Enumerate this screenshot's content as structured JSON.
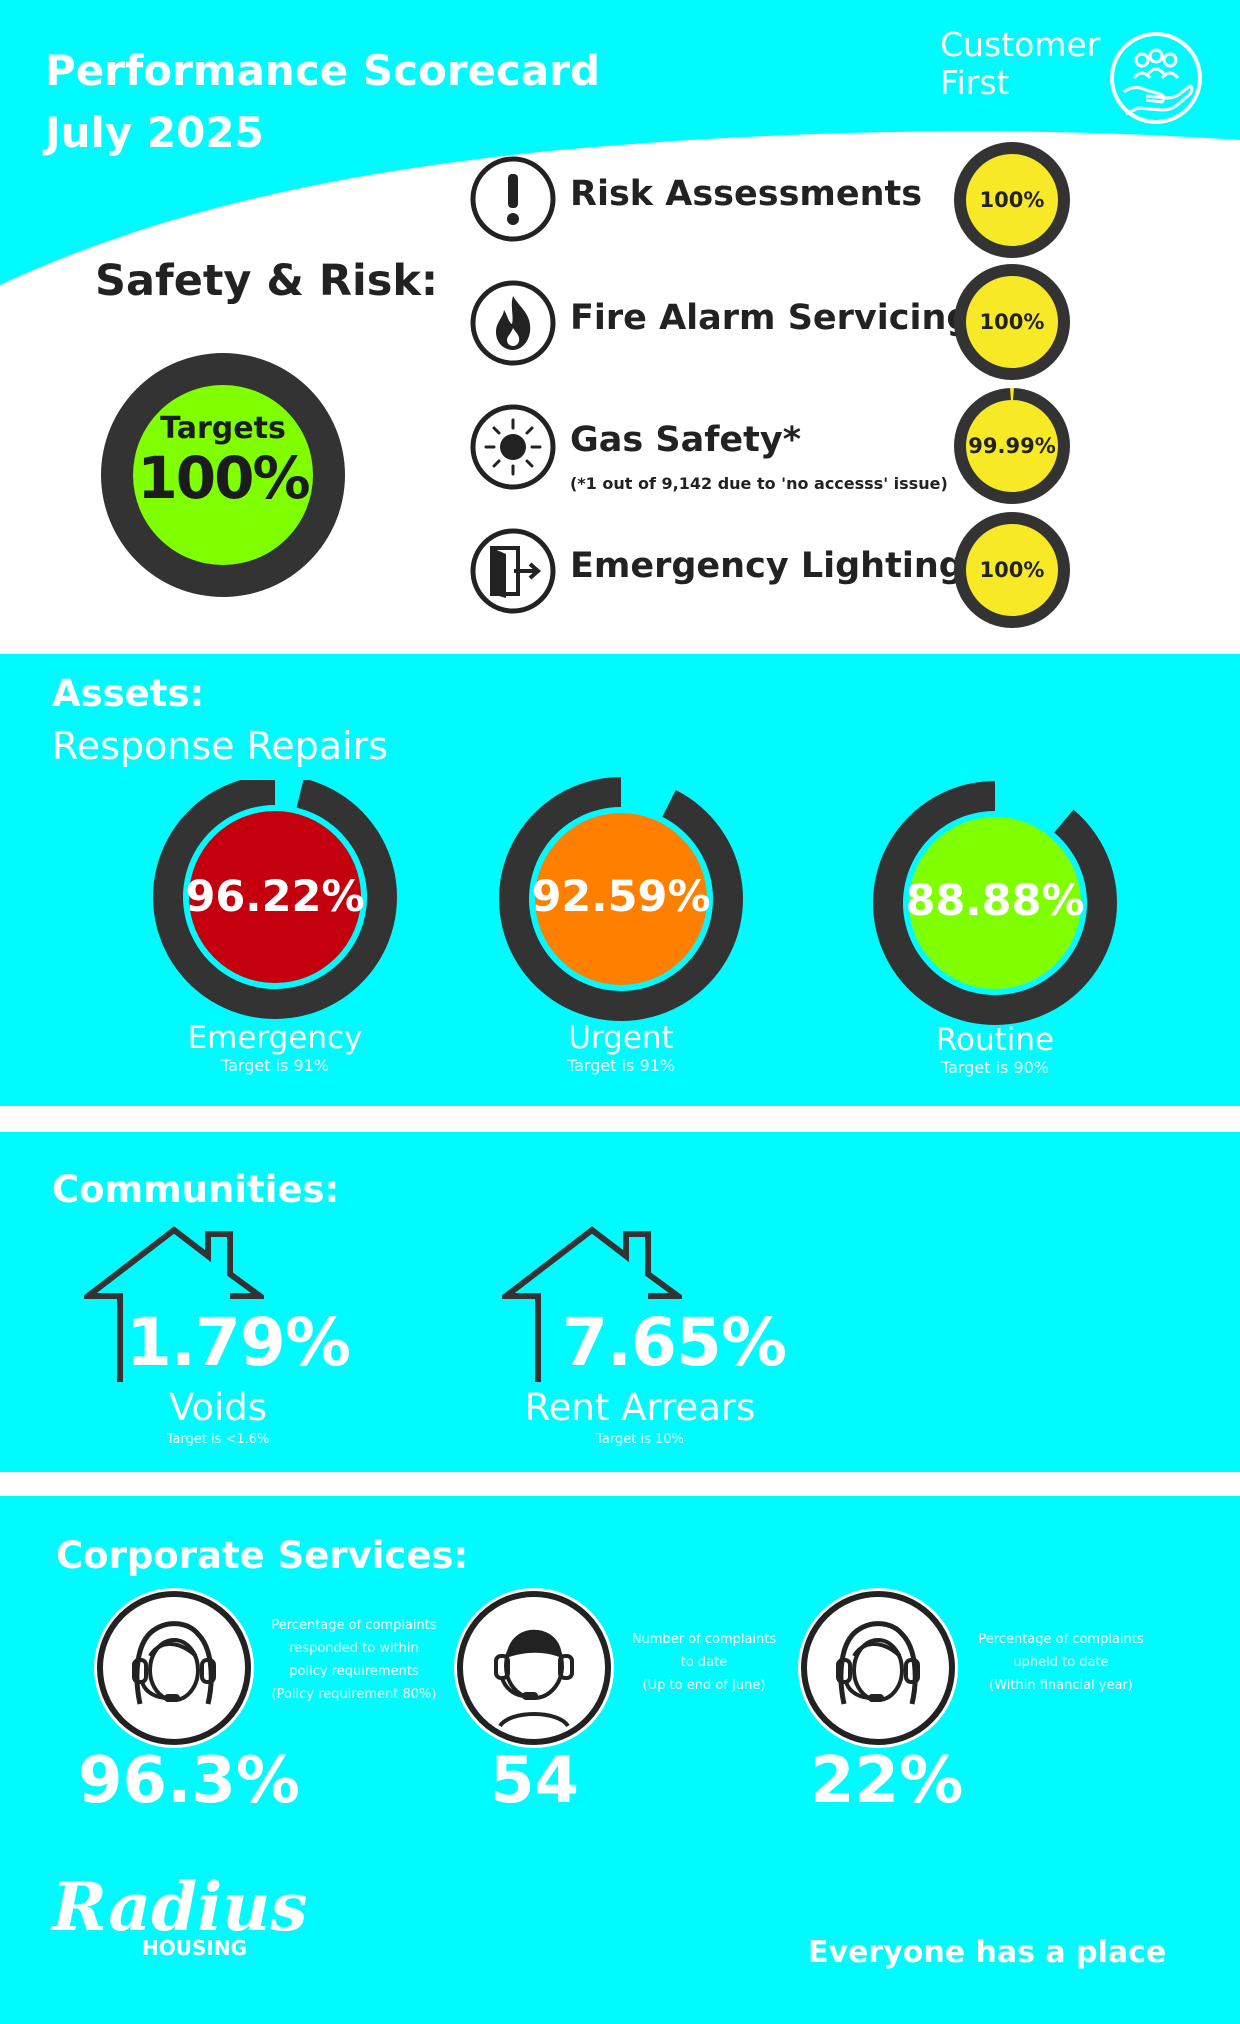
{
  "header": {
    "title_line1": "Performance Scorecard",
    "title_line2": "July 2025",
    "badge_line1": "Customer",
    "badge_line2": "First",
    "badge_icon": "hand-with-people-icon"
  },
  "colors": {
    "cyan": "#00fbff",
    "dark_ring": "#333333",
    "yellow": "#f7e925",
    "lime": "#80ff00",
    "red": "#c4000f",
    "orange": "#ff7f00"
  },
  "safety": {
    "heading": "Safety & Risk:",
    "targets_label": "Targets",
    "targets_value": "100%",
    "items": [
      {
        "label": "Risk Assessments",
        "value": "100%",
        "icon": "exclamation-icon",
        "note": ""
      },
      {
        "label": "Fire Alarm Servicing",
        "value": "100%",
        "icon": "flame-icon",
        "note": ""
      },
      {
        "label": "Gas Safety*",
        "value": "99.99%",
        "icon": "sun-icon",
        "note": "(*1 out of 9,142 due to 'no accesss' issue)"
      },
      {
        "label": "Emergency Lighting",
        "value": "100%",
        "icon": "exit-door-icon",
        "note": ""
      }
    ]
  },
  "assets": {
    "heading": "Assets:",
    "subheading": "Response Repairs",
    "items": [
      {
        "value": "96.22%",
        "fraction": 0.9622,
        "label": "Emergency",
        "target": "Target is 91%",
        "color": "#c4000f"
      },
      {
        "value": "92.59%",
        "fraction": 0.9259,
        "label": "Urgent",
        "target": "Target is 91%",
        "color": "#ff7f00"
      },
      {
        "value": "88.88%",
        "fraction": 0.8888,
        "label": "Routine",
        "target": "Target is 90%",
        "color": "#80ff00"
      }
    ]
  },
  "communities": {
    "heading": "Communities:",
    "items": [
      {
        "value": "1.79%",
        "label": "Voids",
        "target": "Target is <1.6%"
      },
      {
        "value": "7.65%",
        "label": "Rent Arrears",
        "target": "Target is 10%"
      }
    ]
  },
  "corporate": {
    "heading": "Corporate Services:",
    "items": [
      {
        "value": "96.3%",
        "desc_lines": [
          "Percentage of complaints",
          "responded to within",
          "policy requirements",
          "(Policy requirement 80%)"
        ],
        "icon": "headset-agent-icon"
      },
      {
        "value": "54",
        "desc_lines": [
          "Number of complaints",
          "to date",
          "(Up to end of June)"
        ],
        "icon": "headset-agent-icon"
      },
      {
        "value": "22%",
        "desc_lines": [
          "Percentage of complaints",
          "upheld to date",
          "(Within financial year)"
        ],
        "icon": "headset-agent-icon"
      }
    ]
  },
  "footer": {
    "logo_word": "Radius",
    "logo_sub": "HOUSING",
    "tagline": "Everyone has a place"
  }
}
